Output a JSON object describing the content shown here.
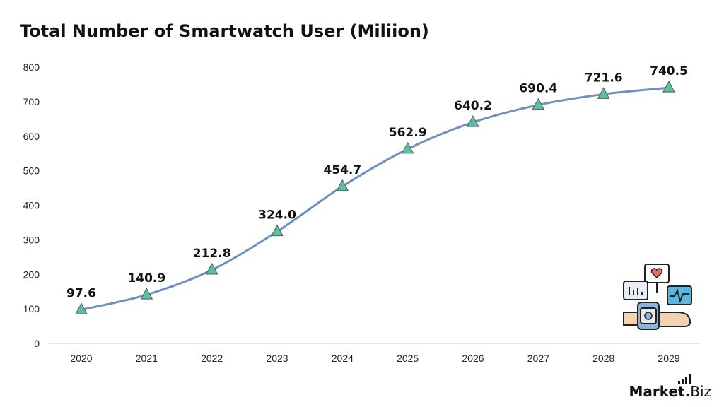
{
  "title": "Total Number of Smartwatch User (Miliion)",
  "brand": {
    "name": "Market",
    "dot": ".",
    "suffix": "Biz"
  },
  "illustration_icon": "smartwatch-health-monitor-icon",
  "colors": {
    "line": "#6f8fbf",
    "marker_fill": "#5bbfa0",
    "marker_stroke": "#5a5a5a",
    "axis": "#d0d0d0"
  },
  "chart_data": {
    "type": "line",
    "title": "Total Number of Smartwatch User (Miliion)",
    "xlabel": "",
    "ylabel": "",
    "categories": [
      "2020",
      "2021",
      "2022",
      "2023",
      "2024",
      "2025",
      "2026",
      "2027",
      "2028",
      "2029"
    ],
    "series": [
      {
        "values": [
          97.6,
          140.9,
          212.8,
          324.0,
          454.7,
          562.9,
          640.2,
          690.4,
          721.6,
          740.5
        ],
        "labels": [
          "97.6",
          "140.9",
          "212.8",
          "324.0",
          "454.7",
          "562.9",
          "640.2",
          "690.4",
          "721.6",
          "740.5"
        ],
        "marker": "triangle"
      }
    ],
    "ylim": [
      0,
      800
    ],
    "yticks": [
      "0",
      "100",
      "200",
      "300",
      "400",
      "500",
      "600",
      "700",
      "800"
    ],
    "grid": false,
    "legend": "none"
  }
}
